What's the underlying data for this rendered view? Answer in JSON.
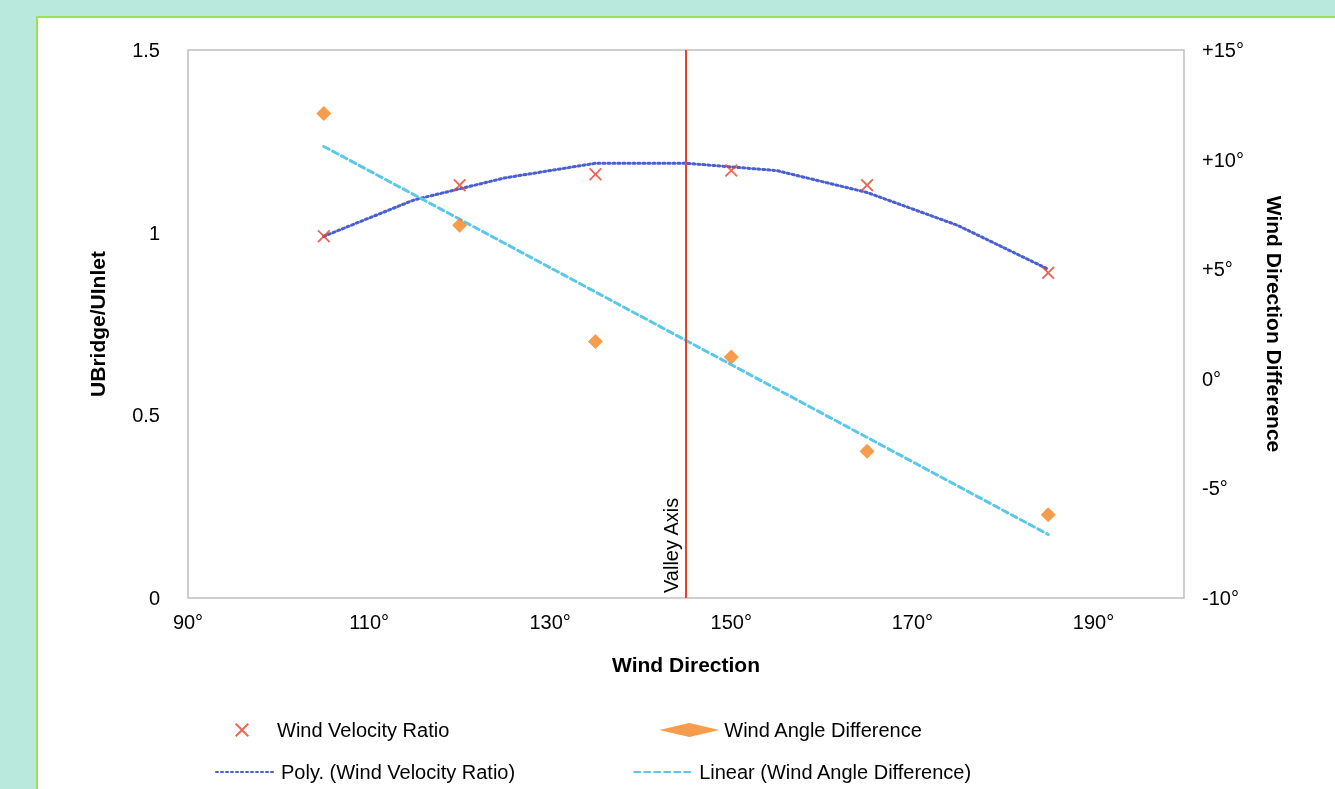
{
  "chart_data": {
    "type": "scatter",
    "xlabel": "Wind Direction",
    "ylabel": "UBridge/UInlet",
    "y2label": "Wind Direction Difference",
    "xlim": [
      90,
      200
    ],
    "xticks": [
      {
        "value": 90,
        "label": "90°"
      },
      {
        "value": 110,
        "label": "110°"
      },
      {
        "value": 130,
        "label": "130°"
      },
      {
        "value": 150,
        "label": "150°"
      },
      {
        "value": 170,
        "label": "170°"
      },
      {
        "value": 190,
        "label": "190°"
      }
    ],
    "ylim": [
      0,
      1.5
    ],
    "yticks": [
      0,
      0.5,
      1,
      1.5
    ],
    "y2lim": [
      -10,
      15
    ],
    "y2ticks": [
      {
        "value": -10,
        "label": "-10°"
      },
      {
        "value": -5,
        "label": "-5°"
      },
      {
        "value": 0,
        "label": "0°"
      },
      {
        "value": 5,
        "label": "+5°"
      },
      {
        "value": 10,
        "label": "+10°"
      },
      {
        "value": 15,
        "label": "+15°"
      }
    ],
    "grid": false,
    "legend": "bottom",
    "ref_lines": [
      {
        "axis": "x",
        "value": 145,
        "label": "Valley Axis",
        "color": "#e8412c"
      }
    ],
    "series": [
      {
        "name": "Wind Velocity Ratio",
        "marker": "cross",
        "color": "#e8412c",
        "x": [
          105,
          120,
          135,
          150,
          165,
          185
        ],
        "values": [
          0.99,
          1.13,
          1.16,
          1.17,
          1.13,
          0.89
        ]
      },
      {
        "name": "Wind Angle Difference",
        "marker": "diamond",
        "color": "#f5821f",
        "axis": "y2",
        "x": [
          105,
          120,
          135,
          150,
          165,
          185
        ],
        "values": [
          12.1,
          7.0,
          1.7,
          1.0,
          -3.3,
          -6.2
        ]
      },
      {
        "name": "Poly. (Wind Velocity Ratio)",
        "type": "line",
        "marker": "none",
        "line_style": "dotted",
        "color": "#4a5fd0",
        "x": [
          105,
          115,
          125,
          135,
          145,
          155,
          165,
          175,
          185
        ],
        "values": [
          0.99,
          1.09,
          1.15,
          1.19,
          1.19,
          1.17,
          1.11,
          1.02,
          0.9
        ]
      },
      {
        "name": "Linear (Wind Angle Difference)",
        "type": "line",
        "marker": "none",
        "line_style": "dashed",
        "color": "#5bc8e8",
        "axis": "y2",
        "x": [
          105,
          185
        ],
        "values": [
          10.6,
          -7.1
        ]
      }
    ]
  }
}
